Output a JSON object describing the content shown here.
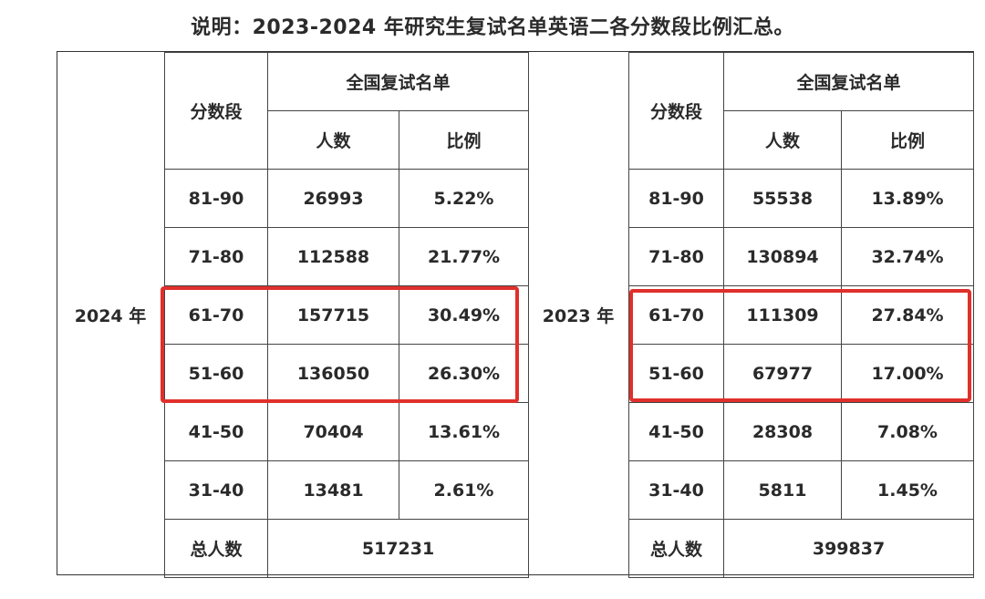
{
  "title": "说明：2023-2024 年研究生复试名单英语二各分数段比例汇总。",
  "accent_color": "#e0302b",
  "headers": {
    "score_range": "分数段",
    "group": "全国复试名单",
    "count": "人数",
    "ratio": "比例",
    "total": "总人数"
  },
  "tables": [
    {
      "year": "2024 年",
      "rows": [
        {
          "range": "81-90",
          "count": "26993",
          "ratio": "5.22%"
        },
        {
          "range": "71-80",
          "count": "112588",
          "ratio": "21.77%"
        },
        {
          "range": "61-70",
          "count": "157715",
          "ratio": "30.49%"
        },
        {
          "range": "51-60",
          "count": "136050",
          "ratio": "26.30%"
        },
        {
          "range": "41-50",
          "count": "70404",
          "ratio": "13.61%"
        },
        {
          "range": "31-40",
          "count": "13481",
          "ratio": "2.61%"
        }
      ],
      "total": "517231"
    },
    {
      "year": "2023 年",
      "rows": [
        {
          "range": "81-90",
          "count": "55538",
          "ratio": "13.89%"
        },
        {
          "range": "71-80",
          "count": "130894",
          "ratio": "32.74%"
        },
        {
          "range": "61-70",
          "count": "111309",
          "ratio": "27.84%"
        },
        {
          "range": "51-60",
          "count": "67977",
          "ratio": "17.00%"
        },
        {
          "range": "41-50",
          "count": "28308",
          "ratio": "7.08%"
        },
        {
          "range": "31-40",
          "count": "5811",
          "ratio": "1.45%"
        }
      ],
      "total": "399837"
    }
  ]
}
